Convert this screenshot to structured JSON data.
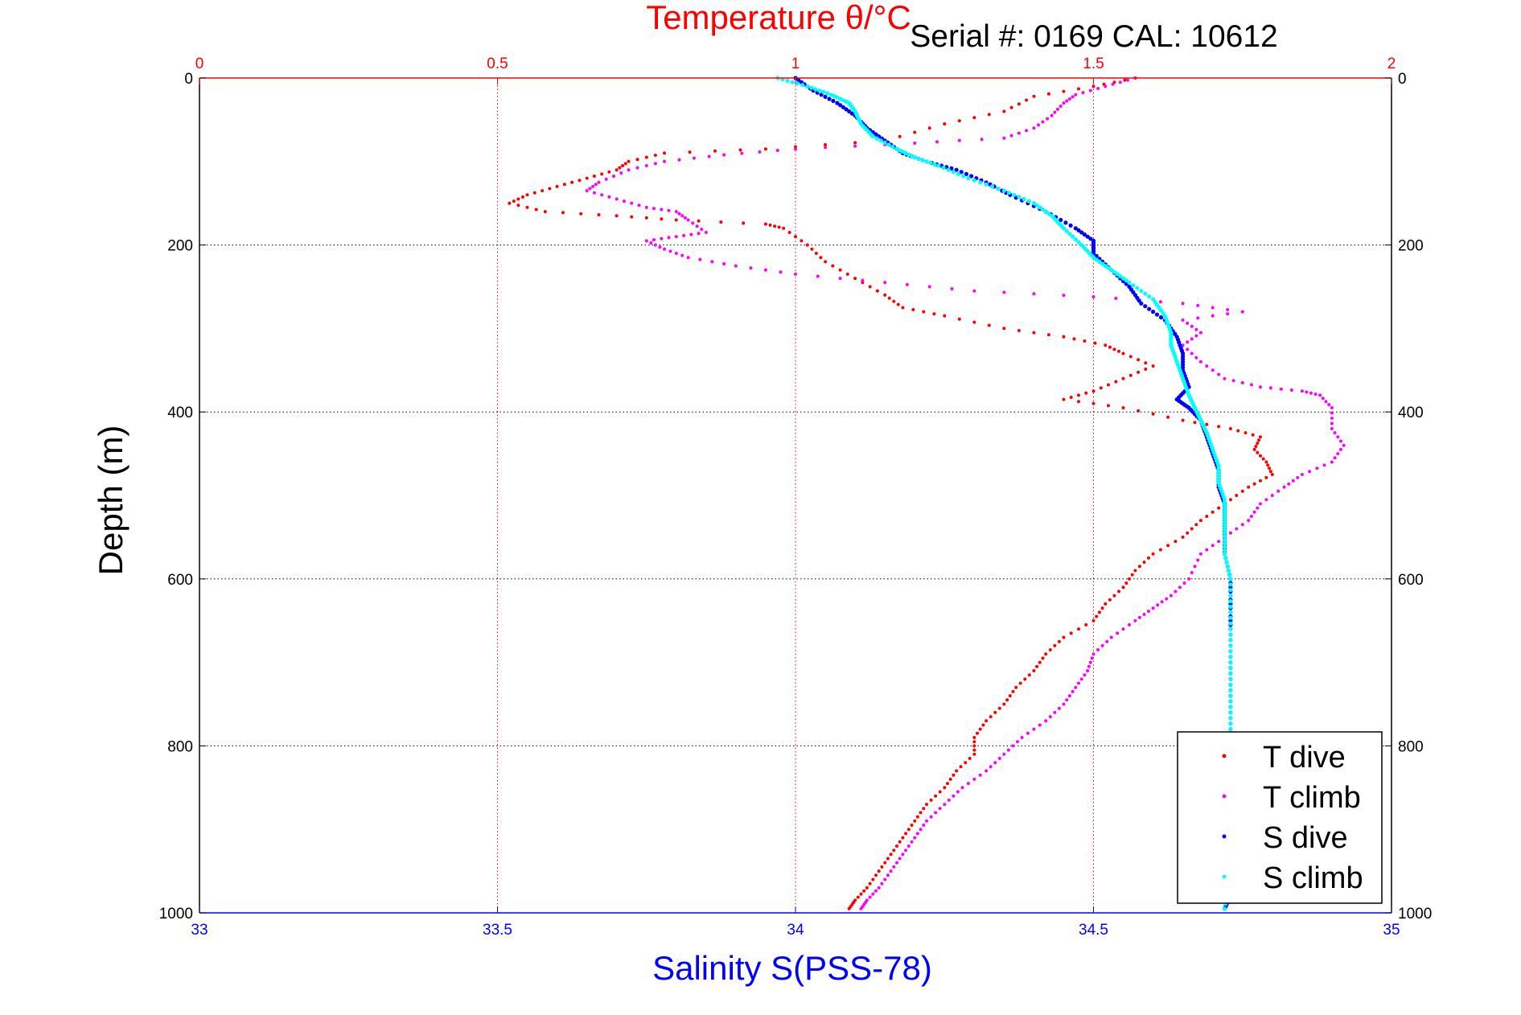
{
  "chart_data": {
    "type": "scatter",
    "title": "Temperature θ/°C",
    "subtitle": "Serial #: 0169 CAL: 10612",
    "xlabel_bottom": "Salinity S(PSS-78)",
    "xlabel_top": "Temperature θ/°C",
    "ylabel": "Depth (m)",
    "xlim_salinity": [
      33,
      35
    ],
    "xlim_temperature": [
      0,
      2
    ],
    "ylim": [
      0,
      1000
    ],
    "y_reversed": true,
    "x_ticks_salinity": [
      "33",
      "33.5",
      "34",
      "34.5",
      "35"
    ],
    "x_ticks_temperature": [
      "0",
      "0.5",
      "1",
      "1.5",
      "2"
    ],
    "y_ticks": [
      "0",
      "200",
      "400",
      "600",
      "800",
      "1000"
    ],
    "grid": true,
    "legend_position": "bottom-right",
    "legend": [
      "T dive",
      "T climb",
      "S dive",
      "S climb"
    ],
    "colors": {
      "t_dive": "#ff0000",
      "t_climb": "#ff00ff",
      "s_dive": "#0000ff",
      "s_climb": "#00ffff",
      "temperature_axis": "#ff0000",
      "salinity_axis": "#0000ff"
    },
    "series": [
      {
        "name": "T dive",
        "axis": "temperature",
        "points": [
          [
            1.57,
            0
          ],
          [
            1.5,
            10
          ],
          [
            1.4,
            22
          ],
          [
            1.35,
            40
          ],
          [
            1.25,
            55
          ],
          [
            1.15,
            75
          ],
          [
            0.95,
            85
          ],
          [
            0.78,
            90
          ],
          [
            0.72,
            100
          ],
          [
            0.7,
            110
          ],
          [
            0.65,
            120
          ],
          [
            0.6,
            130
          ],
          [
            0.55,
            140
          ],
          [
            0.52,
            150
          ],
          [
            0.58,
            160
          ],
          [
            0.7,
            165
          ],
          [
            0.8,
            170
          ],
          [
            0.95,
            175
          ],
          [
            0.98,
            180
          ],
          [
            1.02,
            200
          ],
          [
            1.05,
            220
          ],
          [
            1.1,
            240
          ],
          [
            1.15,
            260
          ],
          [
            1.18,
            275
          ],
          [
            1.25,
            285
          ],
          [
            1.35,
            300
          ],
          [
            1.45,
            310
          ],
          [
            1.52,
            320
          ],
          [
            1.55,
            330
          ],
          [
            1.6,
            345
          ],
          [
            1.55,
            360
          ],
          [
            1.5,
            375
          ],
          [
            1.45,
            385
          ],
          [
            1.55,
            395
          ],
          [
            1.65,
            410
          ],
          [
            1.73,
            420
          ],
          [
            1.78,
            430
          ],
          [
            1.77,
            445
          ],
          [
            1.79,
            460
          ],
          [
            1.8,
            475
          ],
          [
            1.76,
            490
          ],
          [
            1.72,
            510
          ],
          [
            1.68,
            530
          ],
          [
            1.65,
            550
          ],
          [
            1.6,
            570
          ],
          [
            1.57,
            590
          ],
          [
            1.55,
            610
          ],
          [
            1.52,
            630
          ],
          [
            1.5,
            650
          ],
          [
            1.45,
            670
          ],
          [
            1.42,
            690
          ],
          [
            1.4,
            710
          ],
          [
            1.37,
            730
          ],
          [
            1.35,
            750
          ],
          [
            1.32,
            770
          ],
          [
            1.3,
            790
          ],
          [
            1.3,
            810
          ],
          [
            1.27,
            830
          ],
          [
            1.25,
            850
          ],
          [
            1.22,
            870
          ],
          [
            1.2,
            890
          ],
          [
            1.18,
            910
          ],
          [
            1.16,
            930
          ],
          [
            1.14,
            950
          ],
          [
            1.12,
            970
          ],
          [
            1.1,
            985
          ],
          [
            1.09,
            995
          ]
        ]
      },
      {
        "name": "T climb",
        "axis": "temperature",
        "points": [
          [
            1.57,
            0
          ],
          [
            1.52,
            10
          ],
          [
            1.47,
            20
          ],
          [
            1.45,
            30
          ],
          [
            1.43,
            45
          ],
          [
            1.4,
            60
          ],
          [
            1.35,
            72
          ],
          [
            1.2,
            78
          ],
          [
            1.0,
            85
          ],
          [
            0.88,
            92
          ],
          [
            0.78,
            100
          ],
          [
            0.72,
            110
          ],
          [
            0.67,
            125
          ],
          [
            0.65,
            135
          ],
          [
            0.7,
            145
          ],
          [
            0.75,
            155
          ],
          [
            0.8,
            160
          ],
          [
            0.82,
            170
          ],
          [
            0.85,
            185
          ],
          [
            0.8,
            190
          ],
          [
            0.75,
            195
          ],
          [
            0.78,
            205
          ],
          [
            0.82,
            215
          ],
          [
            0.9,
            225
          ],
          [
            1.0,
            235
          ],
          [
            1.15,
            245
          ],
          [
            1.3,
            255
          ],
          [
            1.5,
            262
          ],
          [
            1.65,
            270
          ],
          [
            1.75,
            280
          ],
          [
            1.65,
            290
          ],
          [
            1.68,
            305
          ],
          [
            1.65,
            320
          ],
          [
            1.68,
            340
          ],
          [
            1.72,
            360
          ],
          [
            1.78,
            370
          ],
          [
            1.85,
            375
          ],
          [
            1.88,
            380
          ],
          [
            1.9,
            395
          ],
          [
            1.9,
            420
          ],
          [
            1.92,
            440
          ],
          [
            1.9,
            460
          ],
          [
            1.85,
            475
          ],
          [
            1.82,
            490
          ],
          [
            1.78,
            510
          ],
          [
            1.76,
            530
          ],
          [
            1.72,
            550
          ],
          [
            1.68,
            570
          ],
          [
            1.66,
            600
          ],
          [
            1.63,
            620
          ],
          [
            1.6,
            635
          ],
          [
            1.57,
            650
          ],
          [
            1.53,
            670
          ],
          [
            1.5,
            690
          ],
          [
            1.49,
            710
          ],
          [
            1.47,
            730
          ],
          [
            1.45,
            750
          ],
          [
            1.42,
            770
          ],
          [
            1.38,
            790
          ],
          [
            1.35,
            810
          ],
          [
            1.32,
            830
          ],
          [
            1.28,
            850
          ],
          [
            1.25,
            870
          ],
          [
            1.22,
            890
          ],
          [
            1.2,
            910
          ],
          [
            1.18,
            930
          ],
          [
            1.16,
            950
          ],
          [
            1.14,
            970
          ],
          [
            1.12,
            985
          ],
          [
            1.11,
            995
          ]
        ]
      },
      {
        "name": "S dive",
        "axis": "salinity",
        "points": [
          [
            34.0,
            0
          ],
          [
            34.03,
            15
          ],
          [
            34.07,
            30
          ],
          [
            34.1,
            45
          ],
          [
            34.12,
            60
          ],
          [
            34.15,
            75
          ],
          [
            34.18,
            90
          ],
          [
            34.22,
            100
          ],
          [
            34.27,
            110
          ],
          [
            34.32,
            125
          ],
          [
            34.36,
            140
          ],
          [
            34.42,
            160
          ],
          [
            34.47,
            180
          ],
          [
            34.5,
            195
          ],
          [
            34.5,
            210
          ],
          [
            34.53,
            230
          ],
          [
            34.56,
            250
          ],
          [
            34.58,
            270
          ],
          [
            34.62,
            290
          ],
          [
            34.64,
            310
          ],
          [
            34.65,
            330
          ],
          [
            34.65,
            350
          ],
          [
            34.66,
            370
          ],
          [
            34.64,
            385
          ],
          [
            34.66,
            395
          ],
          [
            34.68,
            410
          ],
          [
            34.69,
            430
          ],
          [
            34.7,
            450
          ],
          [
            34.71,
            470
          ],
          [
            34.71,
            490
          ],
          [
            34.72,
            510
          ],
          [
            34.72,
            530
          ],
          [
            34.72,
            550
          ],
          [
            34.72,
            570
          ],
          [
            34.73,
            600
          ],
          [
            34.73,
            630
          ],
          [
            34.73,
            660
          ],
          [
            34.73,
            700
          ],
          [
            34.73,
            740
          ],
          [
            34.73,
            780
          ],
          [
            34.73,
            820
          ],
          [
            34.73,
            860
          ],
          [
            34.73,
            900
          ],
          [
            34.73,
            940
          ],
          [
            34.73,
            980
          ],
          [
            34.72,
            995
          ]
        ]
      },
      {
        "name": "S climb",
        "axis": "salinity",
        "points": [
          [
            33.97,
            0
          ],
          [
            34.02,
            10
          ],
          [
            34.06,
            20
          ],
          [
            34.09,
            30
          ],
          [
            34.1,
            40
          ],
          [
            34.11,
            55
          ],
          [
            34.13,
            70
          ],
          [
            34.17,
            85
          ],
          [
            34.2,
            95
          ],
          [
            34.24,
            105
          ],
          [
            34.29,
            120
          ],
          [
            34.35,
            135
          ],
          [
            34.4,
            150
          ],
          [
            34.43,
            165
          ],
          [
            34.45,
            180
          ],
          [
            34.48,
            200
          ],
          [
            34.5,
            215
          ],
          [
            34.53,
            230
          ],
          [
            34.56,
            245
          ],
          [
            34.6,
            265
          ],
          [
            34.62,
            285
          ],
          [
            34.63,
            305
          ],
          [
            34.63,
            320
          ],
          [
            34.64,
            340
          ],
          [
            34.65,
            360
          ],
          [
            34.66,
            380
          ],
          [
            34.67,
            395
          ],
          [
            34.68,
            410
          ],
          [
            34.69,
            425
          ],
          [
            34.7,
            445
          ],
          [
            34.71,
            465
          ],
          [
            34.71,
            485
          ],
          [
            34.72,
            505
          ],
          [
            34.72,
            525
          ],
          [
            34.72,
            545
          ],
          [
            34.72,
            570
          ],
          [
            34.73,
            600
          ],
          [
            34.73,
            640
          ],
          [
            34.73,
            680
          ],
          [
            34.73,
            720
          ],
          [
            34.73,
            760
          ],
          [
            34.73,
            800
          ],
          [
            34.73,
            840
          ],
          [
            34.73,
            880
          ],
          [
            34.73,
            920
          ],
          [
            34.73,
            960
          ],
          [
            34.72,
            995
          ]
        ]
      }
    ]
  }
}
